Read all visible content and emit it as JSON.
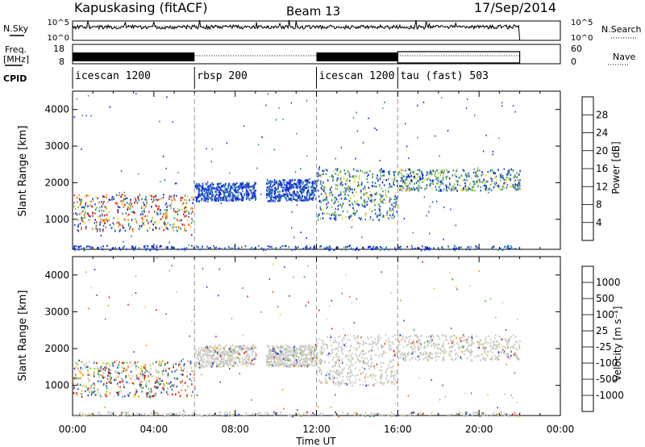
{
  "header": {
    "station": "Kapuskasing (fitACF)",
    "beam": "Beam 13",
    "date": "17/Sep/2014"
  },
  "top_panel": {
    "left_label_1": "N.Sky",
    "left_label_2": "Freq.",
    "left_label_2b": "[MHz]",
    "cpid_label": "CPID",
    "right_label_1": "N.Search",
    "right_label_2": "Nave",
    "nsky_ticks": [
      "10^5",
      "10^0"
    ],
    "freq_ticks": [
      "18",
      "8"
    ],
    "nsearch_ticks": [
      "10^5",
      "10^0"
    ],
    "nave_ticks": [
      "60",
      "0"
    ]
  },
  "cpid": [
    {
      "label": "icescan 1200",
      "start": 0,
      "end": 6
    },
    {
      "label": "rbsp 200",
      "start": 6,
      "end": 12
    },
    {
      "label": "icescan 1200",
      "start": 12,
      "end": 16
    },
    {
      "label": "tau (fast) 503",
      "start": 16,
      "end": 22
    }
  ],
  "axes": {
    "x_label": "Time UT",
    "x_ticks": [
      "00:00",
      "04:00",
      "08:00",
      "12:00",
      "16:00",
      "20:00",
      "00:00"
    ],
    "x_tick_hours": [
      0,
      4,
      8,
      12,
      16,
      20,
      24
    ],
    "y_label": "Slant Range [km]",
    "y_ticks": [
      "1000",
      "2000",
      "3000",
      "4000"
    ],
    "y_tick_values": [
      1000,
      2000,
      3000,
      4000
    ],
    "y_range": [
      180,
      4500
    ]
  },
  "colorbars": {
    "power": {
      "label": "Power [dB]",
      "ticks": [
        "4",
        "8",
        "12",
        "16",
        "20",
        "24",
        "28"
      ],
      "colors": [
        "#0a1ee6",
        "#1e50c8",
        "#2878a0",
        "#3c9b78",
        "#8cbe50",
        "#f0d21e",
        "#f0a014",
        "#e66414",
        "#e6320a",
        "#dc0a0a"
      ]
    },
    "velocity": {
      "label": "Velocity [m s⁻¹]",
      "ticks": [
        "1000",
        "500",
        "100",
        "25",
        "-25",
        "-100",
        "-500",
        "-1000"
      ],
      "colors": [
        "#1e3cc8",
        "#2864a0",
        "#3c8c6e",
        "#78c83c",
        "#c8c8c3",
        "#c8c8c3",
        "#f0c81e",
        "#f09614",
        "#e65a0a",
        "#dc0a0a"
      ]
    }
  },
  "chart_data": {
    "type": "heatmap",
    "x_unit": "hours UT",
    "y_unit": "km",
    "xlim": [
      0,
      24
    ],
    "ylim": [
      180,
      4500
    ],
    "panels": [
      {
        "name": "Power",
        "regions": [
          {
            "t0": 0,
            "t1": 6,
            "r0": 700,
            "r1": 1700,
            "value_class": "mixed-high"
          },
          {
            "t0": 6,
            "t1": 9,
            "r0": 1500,
            "r1": 2000,
            "value_class": "low"
          },
          {
            "t0": 9.5,
            "t1": 12,
            "r0": 1500,
            "r1": 2100,
            "value_class": "low"
          },
          {
            "t0": 12,
            "t1": 16,
            "r0": 1000,
            "r1": 2400,
            "value_class": "mixed-mid"
          },
          {
            "t0": 16,
            "t1": 22,
            "r0": 1800,
            "r1": 2400,
            "value_class": "mixed-mid"
          },
          {
            "t0": 0,
            "t1": 22,
            "r0": 180,
            "r1": 300,
            "value_class": "ground-scatter"
          }
        ]
      },
      {
        "name": "Velocity",
        "regions": [
          {
            "t0": 0,
            "t1": 6,
            "r0": 700,
            "r1": 1700,
            "value_class": "mixed"
          },
          {
            "t0": 6,
            "t1": 9,
            "r0": 1500,
            "r1": 2100,
            "value_class": "near-zero"
          },
          {
            "t0": 9.5,
            "t1": 12,
            "r0": 1500,
            "r1": 2100,
            "value_class": "near-zero"
          },
          {
            "t0": 12,
            "t1": 16,
            "r0": 1000,
            "r1": 2400,
            "value_class": "near-zero"
          },
          {
            "t0": 16,
            "t1": 22,
            "r0": 1700,
            "r1": 2400,
            "value_class": "near-zero"
          },
          {
            "t0": 0,
            "t1": 22,
            "r0": 180,
            "r1": 300,
            "value_class": "ground-scatter"
          }
        ]
      }
    ]
  }
}
